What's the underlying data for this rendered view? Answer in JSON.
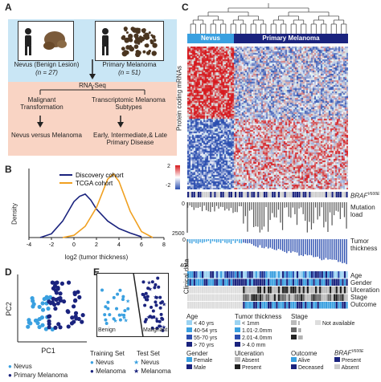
{
  "panels": {
    "a": "A",
    "b": "B",
    "c": "C",
    "d": "D",
    "e": "E"
  },
  "panelA": {
    "nevus_label": "Nevus (Benign Lesion)",
    "nevus_n": "(n = 27)",
    "melanoma_label": "Primary Melanoma",
    "melanoma_n": "(n = 51)",
    "rnaseq": "RNA-Seq",
    "left_mid": "Malignant Transformation",
    "right_mid": "Transcriptomic Melanoma Subtypes",
    "left_bottom": "Nevus versus Melanoma",
    "right_bottom": "Early, Intermediate,& Late Primary Disease",
    "colors": {
      "blue_box": "#c9e6f5",
      "salmon_box": "#f9d4c4"
    }
  },
  "panelB": {
    "xlabel": "log2 (tumor thickness)",
    "ylabel": "Density",
    "chart_data": {
      "type": "line",
      "xlim": [
        -4,
        8
      ],
      "xticks": [
        "-4",
        "-2",
        "0",
        "2",
        "4",
        "6",
        "8"
      ],
      "series": [
        {
          "name": "Discovery cohort",
          "color": "#1a237e",
          "x": [
            -3,
            -2,
            -1,
            0,
            0.5,
            1,
            1.5,
            2,
            3,
            4,
            5,
            6
          ],
          "y": [
            0.0,
            0.05,
            0.22,
            0.48,
            0.55,
            0.58,
            0.5,
            0.38,
            0.22,
            0.12,
            0.06,
            0.01
          ]
        },
        {
          "name": "TCGA cohort",
          "color": "#f0a020",
          "x": [
            -1,
            0,
            1,
            2,
            3,
            3.5,
            4,
            5,
            6,
            7
          ],
          "y": [
            0.0,
            0.03,
            0.15,
            0.4,
            0.78,
            0.85,
            0.75,
            0.35,
            0.08,
            0.0
          ]
        }
      ]
    }
  },
  "panelC": {
    "header_nevus": "Nevus",
    "header_melanoma": "Primary Melanoma",
    "row_label": "Protein coding mRNAs",
    "scale_hi": "2",
    "scale_lo": "-2",
    "braf": "BRAF",
    "braf_sup": "V600E",
    "mutation_load": "Mutation load",
    "mut_ticks": [
      "0",
      "2500"
    ],
    "tumor_thickness": "Tumor thickness",
    "tt_ticks": [
      "0",
      "40"
    ],
    "clinical": "Clinical data",
    "tracks": [
      "Age",
      "Gender",
      "Ulceration",
      "Stage",
      "Outcome"
    ],
    "colors": {
      "nevus": "#3aa0e0",
      "melanoma": "#1a237e",
      "red": "#d7191c",
      "blue": "#2c4fb0"
    }
  },
  "legend": {
    "age_title": "Age",
    "age_items": [
      "< 40 yrs",
      "40-54 yrs",
      "55-70 yrs",
      "> 70 yrs"
    ],
    "tt_title": "Tumor thickness",
    "tt_items": [
      "< 1mm",
      "1.01-2.0mm",
      "2.01-4.0mm",
      "> 4.0 mm"
    ],
    "stage_title": "Stage",
    "stage_items": [
      "I",
      "II",
      "III"
    ],
    "na": "Not available",
    "gender_title": "Gender",
    "gender_items": [
      "Female",
      "Male"
    ],
    "ulc_title": "Ulceration",
    "ulc_items": [
      "Absent",
      "Present"
    ],
    "out_title": "Outcome",
    "out_items": [
      "Alive",
      "Deceased"
    ],
    "braf_title": "BRAF",
    "braf_sup": "V600E",
    "braf_items": [
      "Present",
      "Absent"
    ]
  },
  "panelD": {
    "xlabel": "PC1",
    "ylabel": "PC2",
    "legend": [
      "Nevus",
      "Primary Melanoma"
    ]
  },
  "panelE": {
    "benign": "Benign",
    "malignant": "Malignant",
    "training": "Training Set",
    "test": "Test Set",
    "train_items": [
      "Nevus",
      "Melanoma"
    ],
    "test_items": [
      "Nevus",
      "Melanoma"
    ]
  }
}
